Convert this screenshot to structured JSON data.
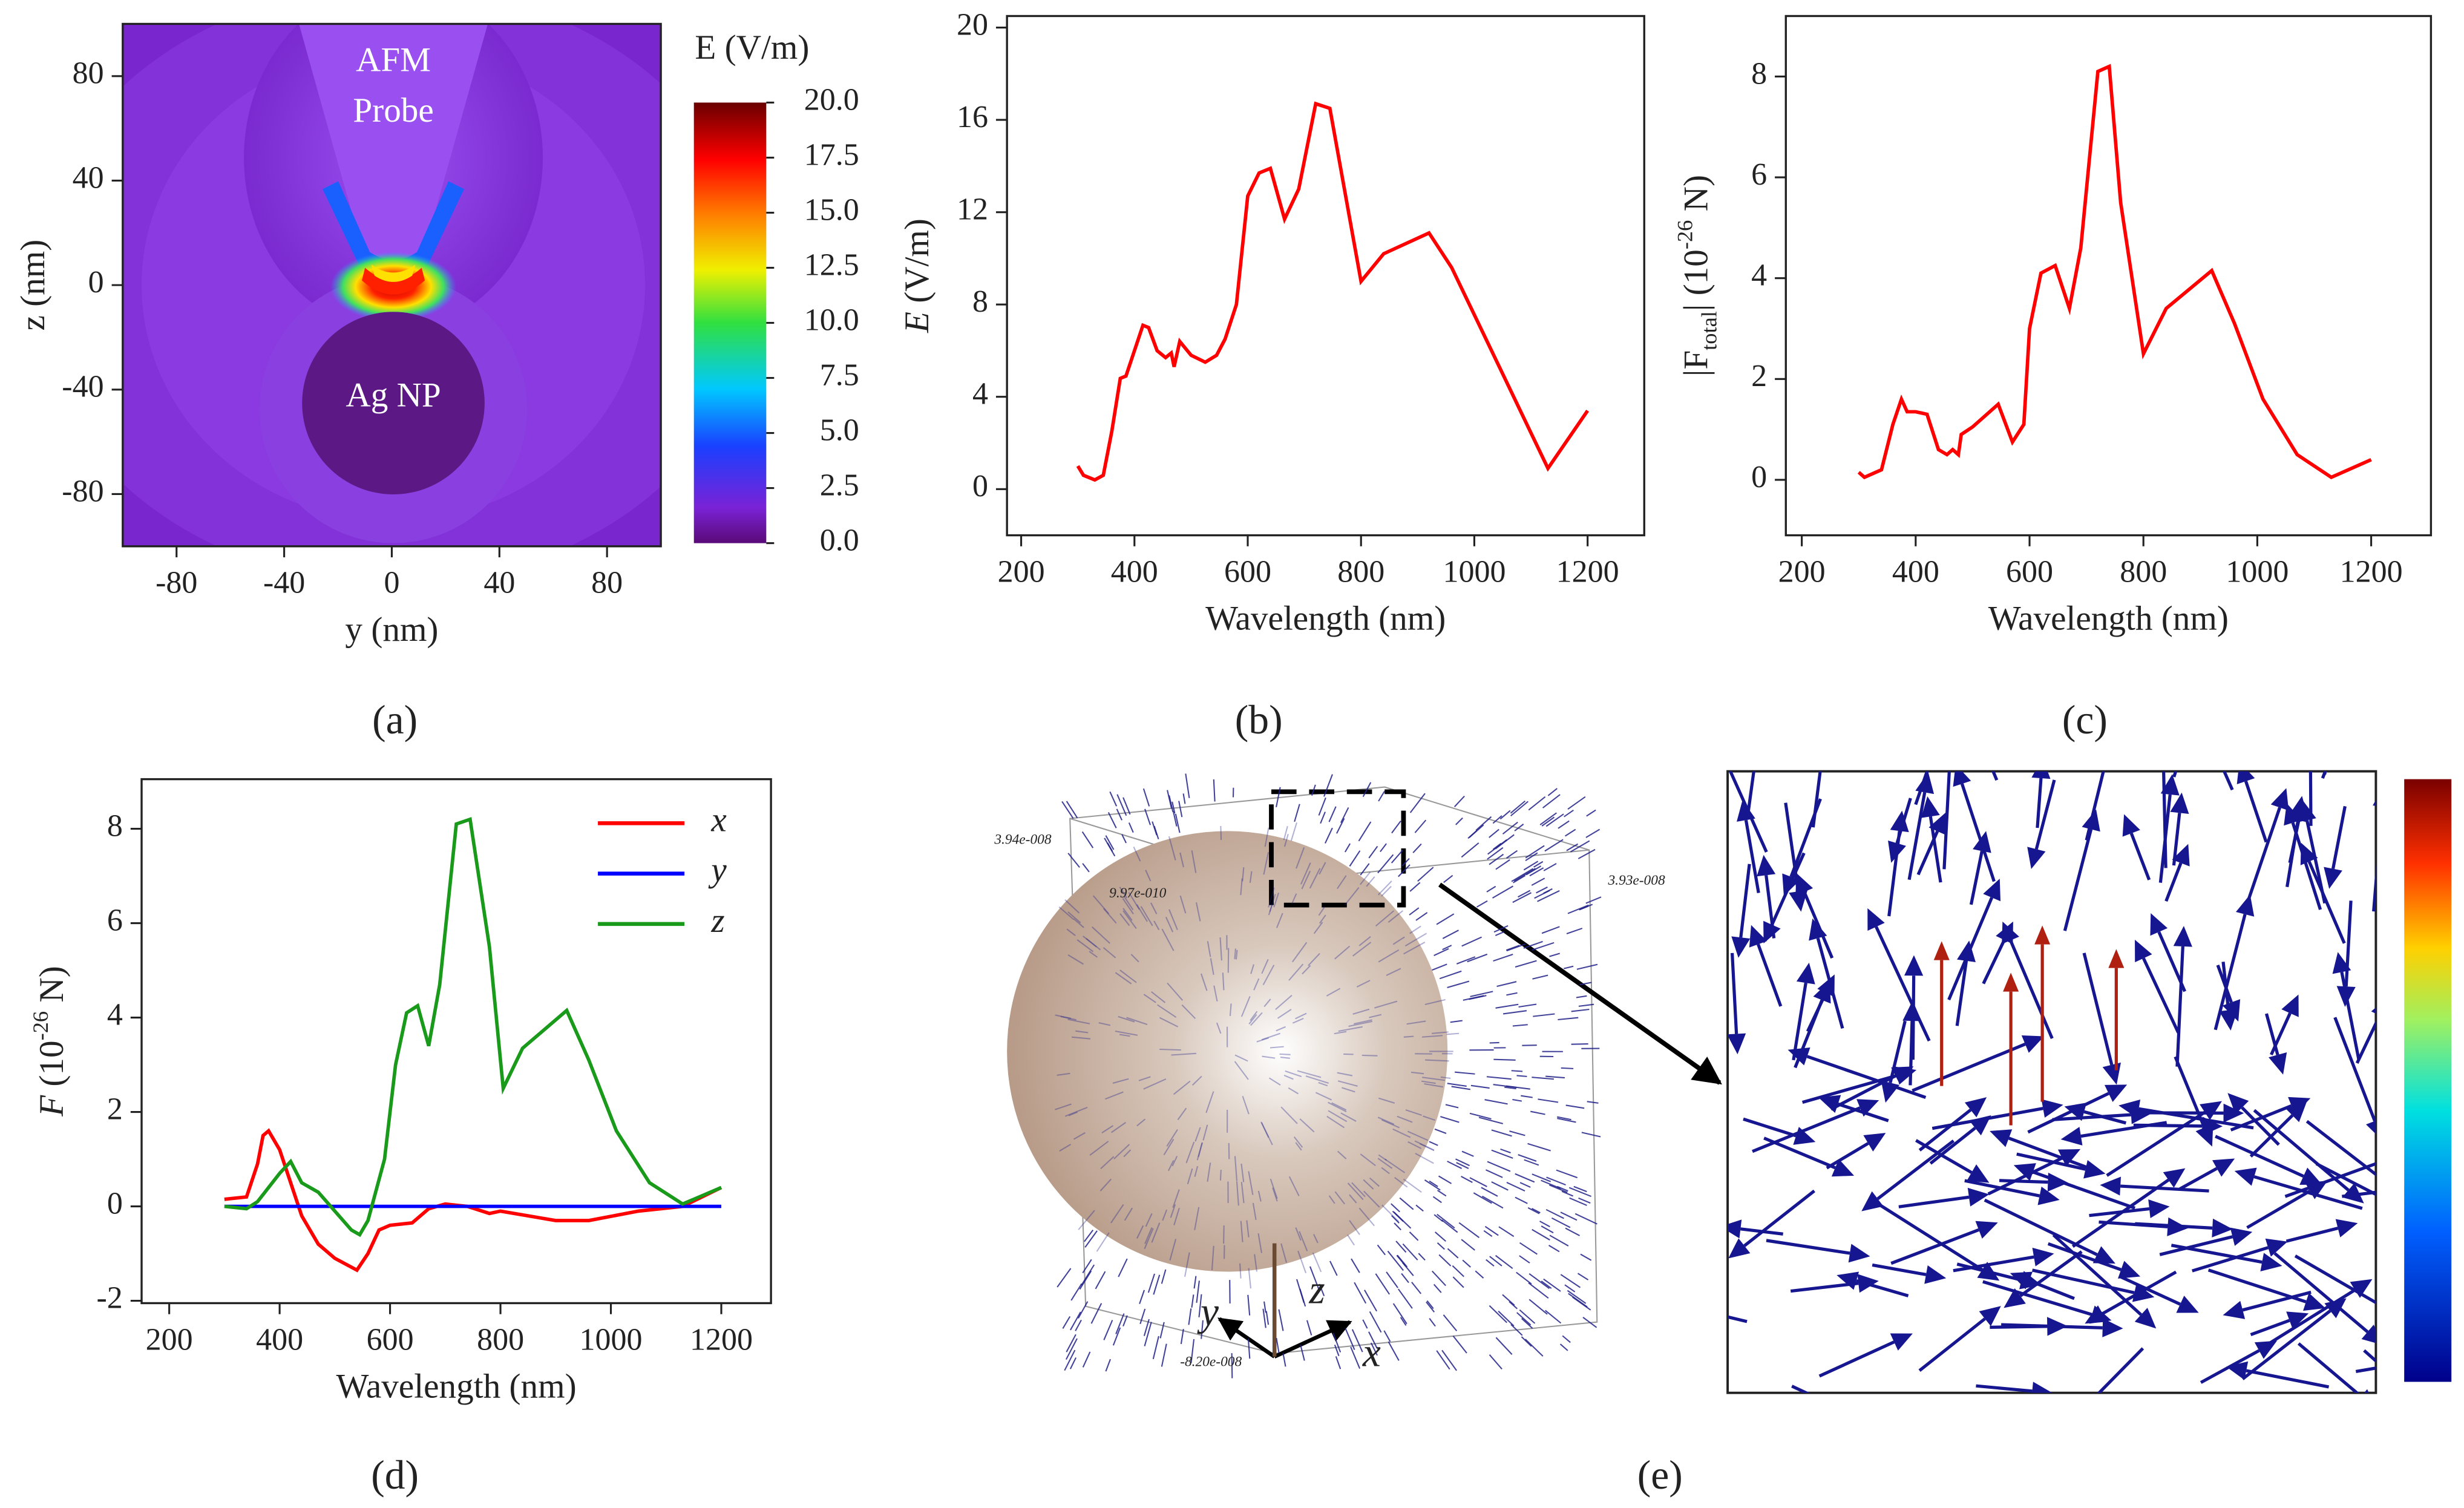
{
  "chart_data": [
    {
      "type": "heatmap",
      "label": "(a)",
      "xlabel": "y (nm)",
      "ylabel": "z (nm)",
      "xlim": [
        -100,
        100
      ],
      "ylim": [
        -100,
        100
      ],
      "xticks": [
        -80,
        -40,
        0,
        40,
        80
      ],
      "yticks": [
        -80,
        -40,
        0,
        40,
        80
      ],
      "annotations": [
        "AFM",
        "Probe",
        "Ag NP"
      ],
      "colorbar_label": "E (V/m)",
      "clim": [
        0,
        20
      ],
      "cticks": [
        {
          "value": 0,
          "label": "0.0"
        },
        2.5,
        {
          "value": 5,
          "label": "5.0"
        },
        7.5,
        {
          "value": 10,
          "label": "10.0"
        },
        12.5,
        {
          "value": 15,
          "label": "15.0"
        },
        17.5,
        {
          "value": 20,
          "label": "20.0"
        }
      ]
    },
    {
      "type": "line",
      "label": "(b)",
      "color": "#ff0000",
      "xlabel": "Wavelength (nm)",
      "ylabel": [
        "E",
        " (V/m)"
      ],
      "xlim": [
        175,
        1300
      ],
      "ylim": [
        -2,
        20.5
      ],
      "xticks": [
        200,
        400,
        600,
        800,
        1000,
        1200
      ],
      "yticks": [
        0,
        4,
        8,
        12,
        16,
        20
      ],
      "x": [
        300,
        310,
        330,
        345,
        360,
        375,
        385,
        400,
        415,
        425,
        440,
        455,
        465,
        470,
        480,
        500,
        525,
        545,
        560,
        580,
        600,
        620,
        640,
        665,
        690,
        720,
        745,
        800,
        840,
        920,
        960,
        1050,
        1130,
        1200
      ],
      "values": [
        1.0,
        0.6,
        0.4,
        0.6,
        2.5,
        4.8,
        4.9,
        6.0,
        7.1,
        7.0,
        6.0,
        5.7,
        5.9,
        5.3,
        6.4,
        5.8,
        5.5,
        5.8,
        6.5,
        8.0,
        12.7,
        13.7,
        13.9,
        11.7,
        13.0,
        16.7,
        16.5,
        9.0,
        10.2,
        11.1,
        9.6,
        5.0,
        0.9,
        3.4
      ]
    },
    {
      "type": "line",
      "label": "(c)",
      "color": "#ff0000",
      "xlabel": "Wavelength (nm)",
      "ylabel": [
        "|F",
        "total",
        "| (10",
        "-26",
        " N)"
      ],
      "xlim": [
        172,
        1305
      ],
      "ylim": [
        -1.1,
        9.2
      ],
      "xticks": [
        200,
        400,
        600,
        800,
        1000,
        1200
      ],
      "yticks": [
        0,
        2,
        4,
        6,
        8
      ],
      "x": [
        300,
        310,
        340,
        360,
        375,
        385,
        400,
        420,
        440,
        455,
        465,
        475,
        480,
        500,
        545,
        570,
        590,
        600,
        620,
        645,
        670,
        690,
        720,
        740,
        760,
        800,
        840,
        920,
        960,
        1010,
        1070,
        1130,
        1200
      ],
      "values": [
        0.15,
        0.05,
        0.2,
        1.1,
        1.6,
        1.35,
        1.35,
        1.3,
        0.6,
        0.5,
        0.6,
        0.5,
        0.9,
        1.05,
        1.5,
        0.75,
        1.1,
        3.0,
        4.1,
        4.25,
        3.4,
        4.6,
        8.1,
        8.2,
        5.5,
        2.5,
        3.4,
        4.15,
        3.1,
        1.6,
        0.5,
        0.05,
        0.4
      ]
    },
    {
      "type": "multiline",
      "label": "(d)",
      "xlabel": "Wavelength (nm)",
      "ylabel": [
        "F",
        " (10",
        "-26",
        " N)"
      ],
      "xlim": [
        150,
        1290
      ],
      "ylim": [
        -2.05,
        9.05
      ],
      "xticks": [
        200,
        400,
        600,
        800,
        1000,
        1200
      ],
      "yticks": [
        -2,
        0,
        2,
        4,
        6,
        8
      ],
      "legend": "upper right",
      "series": [
        {
          "name": "x",
          "color": "#ff0000",
          "x": [
            300,
            340,
            360,
            370,
            380,
            400,
            420,
            440,
            470,
            500,
            540,
            560,
            580,
            600,
            640,
            670,
            700,
            740,
            780,
            800,
            850,
            900,
            960,
            1050,
            1130,
            1200
          ],
          "values": [
            0.15,
            0.2,
            0.9,
            1.5,
            1.6,
            1.2,
            0.5,
            -0.2,
            -0.8,
            -1.1,
            -1.35,
            -1.0,
            -0.5,
            -0.4,
            -0.35,
            -0.05,
            0.05,
            0.0,
            -0.15,
            -0.1,
            -0.2,
            -0.3,
            -0.3,
            -0.1,
            0.0,
            0.4
          ]
        },
        {
          "name": "y",
          "color": "#0000ff",
          "x": [
            300,
            1200
          ],
          "values": [
            0,
            0
          ]
        },
        {
          "name": "z",
          "color": "#1a9a1a",
          "x": [
            300,
            340,
            360,
            380,
            400,
            420,
            440,
            470,
            500,
            530,
            545,
            560,
            590,
            610,
            630,
            650,
            670,
            690,
            720,
            745,
            780,
            805,
            840,
            920,
            960,
            1010,
            1070,
            1130,
            1200
          ],
          "values": [
            0.0,
            -0.05,
            0.1,
            0.4,
            0.7,
            0.95,
            0.5,
            0.3,
            -0.1,
            -0.5,
            -0.6,
            -0.3,
            1.0,
            3.0,
            4.1,
            4.25,
            3.4,
            4.7,
            8.1,
            8.2,
            5.5,
            2.5,
            3.35,
            4.15,
            3.1,
            1.6,
            0.5,
            0.05,
            0.4
          ]
        }
      ]
    },
    {
      "type": "illustration",
      "label": "(e)",
      "annotations": [
        "3.94e-008",
        "9.97e-010",
        "3.93e-008",
        "-8.20e-008",
        "x",
        "y",
        "z"
      ]
    }
  ]
}
